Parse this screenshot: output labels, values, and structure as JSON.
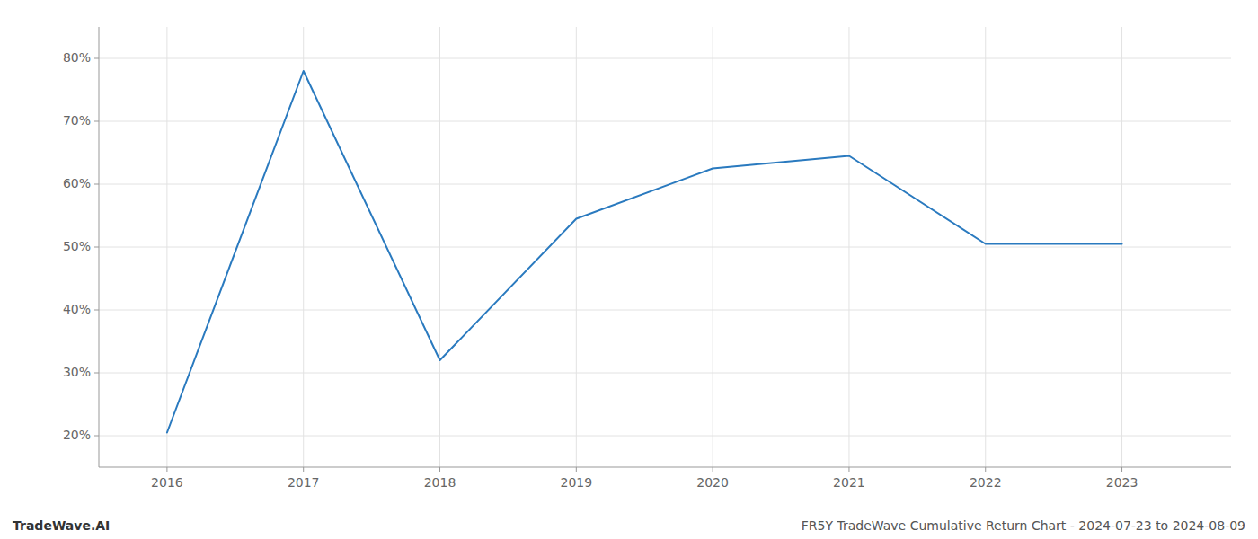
{
  "chart_data": {
    "type": "line",
    "title": "FR5Y TradeWave Cumulative Return Chart - 2024-07-23 to 2024-08-09",
    "annotations": [
      "TradeWave.AI"
    ],
    "x": [
      2016,
      2017,
      2018,
      2019,
      2020,
      2021,
      2022,
      2023
    ],
    "values": [
      20.5,
      78.0,
      32.0,
      54.5,
      62.5,
      64.5,
      50.5,
      50.5
    ],
    "color": "#2a7abf",
    "xlim": [
      2015.5,
      2023.8
    ],
    "ylim": [
      15,
      85
    ],
    "xticks": [
      2016,
      2017,
      2018,
      2019,
      2020,
      2021,
      2022,
      2023
    ],
    "yticks": [
      {
        "value": 20,
        "label": "20%"
      },
      {
        "value": 30,
        "label": "30%"
      },
      {
        "value": 40,
        "label": "40%"
      },
      {
        "value": 50,
        "label": "50%"
      },
      {
        "value": 60,
        "label": "60%"
      },
      {
        "value": 70,
        "label": "70%"
      },
      {
        "value": 80,
        "label": "80%"
      }
    ],
    "grid": true
  }
}
